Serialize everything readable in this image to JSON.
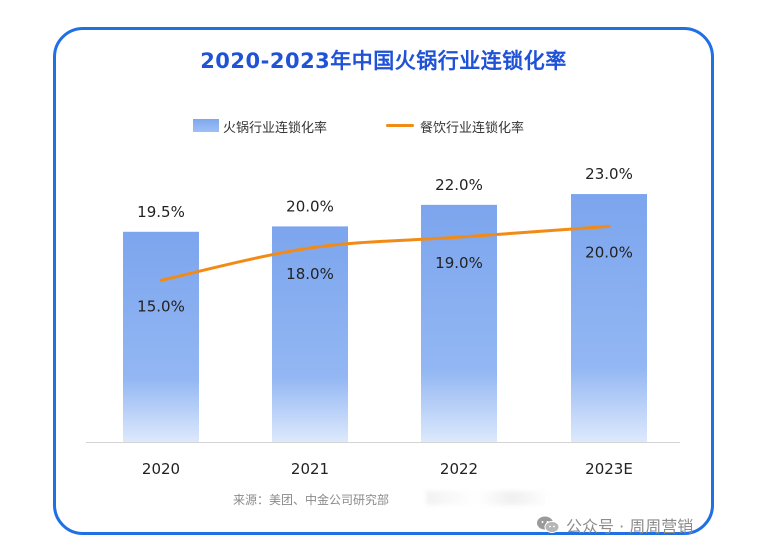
{
  "chart_data": {
    "type": "bar",
    "title": "2020-2023年中国火锅行业连锁化率",
    "categories": [
      "2020",
      "2021",
      "2022",
      "2023E"
    ],
    "series": [
      {
        "name": "火锅行业连锁化率",
        "type": "bar",
        "values": [
          19.5,
          20.0,
          22.0,
          23.0
        ],
        "labels": [
          "19.5%",
          "20.0%",
          "22.0%",
          "23.0%"
        ],
        "color": "#7fa7ee"
      },
      {
        "name": "餐饮行业连锁化率",
        "type": "line",
        "values": [
          15.0,
          18.0,
          19.0,
          20.0
        ],
        "labels": [
          "15.0%",
          "18.0%",
          "19.0%",
          "20.0%"
        ],
        "color": "#f28b16"
      }
    ],
    "ylim": [
      0,
      25
    ],
    "legend_position": "top",
    "grid": false
  },
  "footer": {
    "source": "来源：美团、中金公司研究部",
    "watermark": "公众号 · 周周营销"
  },
  "icons": {
    "watermark_icon": "wechat-icon"
  }
}
